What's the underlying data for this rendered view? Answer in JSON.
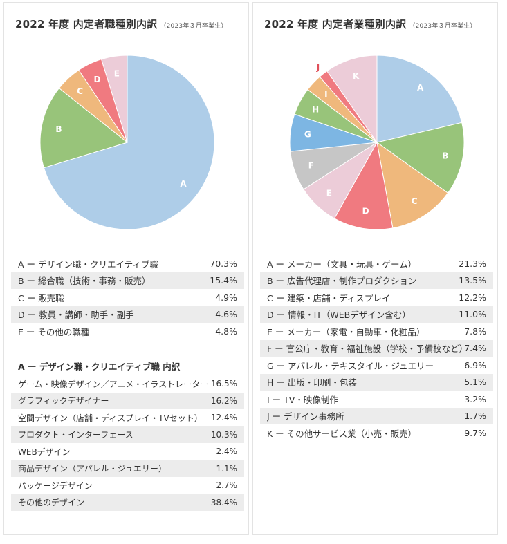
{
  "left": {
    "title": "2022 年度 内定者職種別内訳",
    "subtitle": "（2023年３月卒業生）",
    "sub_section_title": "A ー デザイン職・クリエイティブ職 内訳"
  },
  "right": {
    "title": "2022 年度 内定者業種別内訳",
    "subtitle": "（2023年３月卒業生）"
  },
  "chart_data": [
    {
      "type": "pie",
      "title": "2022 年度 内定者職種別内訳",
      "subtitle": "（2023年３月卒業生）",
      "slices": [
        {
          "letter": "A",
          "label": "A ー デザイン職・クリエイティブ職",
          "value": "70.3%",
          "share": 70.3,
          "color": "#aecde8"
        },
        {
          "letter": "B",
          "label": "B ー 総合職（技術・事務・販売）",
          "value": "15.4%",
          "share": 15.4,
          "color": "#98c47a"
        },
        {
          "letter": "C",
          "label": "C ー 販売職",
          "value": "4.9%",
          "share": 4.9,
          "color": "#efb87c"
        },
        {
          "letter": "D",
          "label": "D ー 教員・講師・助手・副手",
          "value": "4.6%",
          "share": 4.6,
          "color": "#f07a80"
        },
        {
          "letter": "E",
          "label": "E ー その他の職種",
          "value": "4.8%",
          "share": 4.8,
          "color": "#ecccd8"
        }
      ]
    },
    {
      "type": "table",
      "title": "A ー デザイン職・クリエイティブ職 内訳",
      "rows": [
        {
          "label": "ゲーム・映像デザイン／アニメ・イラストレーター",
          "value": "16.5%"
        },
        {
          "label": "グラフィックデザイナー",
          "value": "16.2%"
        },
        {
          "label": "空間デザイン（店舗・ディスプレイ・TVセット）",
          "value": "12.4%"
        },
        {
          "label": "プロダクト・インターフェース",
          "value": "10.3%"
        },
        {
          "label": "WEBデザイン",
          "value": "2.4%"
        },
        {
          "label": "商品デザイン（アパレル・ジュエリー）",
          "value": "1.1%"
        },
        {
          "label": "パッケージデザイン",
          "value": "2.7%"
        },
        {
          "label": "その他のデザイン",
          "value": "38.4%"
        }
      ]
    },
    {
      "type": "pie",
      "title": "2022 年度 内定者業種別内訳",
      "subtitle": "（2023年３月卒業生）",
      "slices": [
        {
          "letter": "A",
          "label": "A ー メーカー（文具・玩具・ゲーム）",
          "value": "21.3%",
          "share": 21.3,
          "color": "#aecde8"
        },
        {
          "letter": "B",
          "label": "B ー 広告代理店・制作プロダクション",
          "value": "13.5%",
          "share": 13.5,
          "color": "#98c47a"
        },
        {
          "letter": "C",
          "label": "C ー 建築・店舗・ディスプレイ",
          "value": "12.2%",
          "share": 12.2,
          "color": "#efb87c"
        },
        {
          "letter": "D",
          "label": "D ー 情報・IT（WEBデザイン含む）",
          "value": "11.0%",
          "share": 11.0,
          "color": "#f07a80"
        },
        {
          "letter": "E",
          "label": "E ー メーカー（家電・自動車・化粧品）",
          "value": "7.8%",
          "share": 7.8,
          "color": "#ecccd8"
        },
        {
          "letter": "F",
          "label": "F ー 官公庁・教育・福祉施設（学校・予備校など）",
          "value": "7.4%",
          "share": 7.4,
          "color": "#c6c6c6"
        },
        {
          "letter": "G",
          "label": "G ー アパレル・テキスタイル・ジュエリー",
          "value": "6.9%",
          "share": 6.9,
          "color": "#7db6e3"
        },
        {
          "letter": "H",
          "label": "H ー 出版・印刷・包装",
          "value": "5.1%",
          "share": 5.1,
          "color": "#98c47a"
        },
        {
          "letter": "I",
          "label": "I ー TV・映像制作",
          "value": "3.2%",
          "share": 3.2,
          "color": "#efb87c"
        },
        {
          "letter": "J",
          "label": "J ー デザイン事務所",
          "value": "1.7%",
          "share": 1.7,
          "color": "#f07a80"
        },
        {
          "letter": "K",
          "label": "K ー その他サービス業（小売・販売）",
          "value": "9.7%",
          "share": 9.7,
          "color": "#ecccd8"
        }
      ]
    }
  ]
}
